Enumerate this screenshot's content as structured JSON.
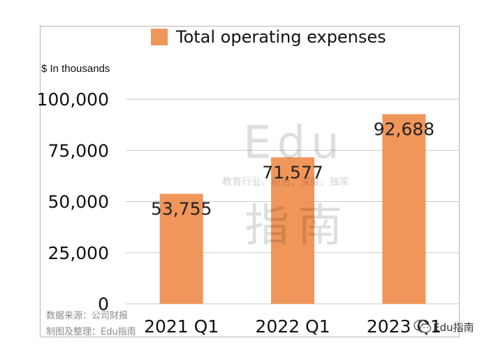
{
  "legend": {
    "label": "Total operating expenses",
    "color": "#f0965a"
  },
  "unit_label": "$ In thousands",
  "source_note": "数据来源：公司财报",
  "made_by_note": "制图及整理：Edu指南",
  "watermark": {
    "brand_en": "Edu",
    "tagline": "教育行业、前沿、深度、独家",
    "brand_cn": "指南"
  },
  "badge": {
    "text": "Edu指南",
    "icon": "wechat-icon"
  },
  "chart_data": {
    "type": "bar",
    "categories": [
      "2021 Q1",
      "2022 Q1",
      "2023 Q1"
    ],
    "series": [
      {
        "name": "Total operating expenses",
        "values": [
          53755,
          71577,
          92688
        ],
        "color": "#f0965a"
      }
    ],
    "data_labels": [
      "53,755",
      "71,577",
      "92,688"
    ],
    "y_ticks": [
      0,
      25000,
      50000,
      75000,
      100000
    ],
    "y_tick_labels": [
      "0",
      "25,000",
      "50,000",
      "75,000",
      "100,000"
    ],
    "ylim": [
      0,
      100000
    ],
    "ylabel": "$ In thousands",
    "xlabel": "",
    "grid": true,
    "legend_position": "top"
  }
}
